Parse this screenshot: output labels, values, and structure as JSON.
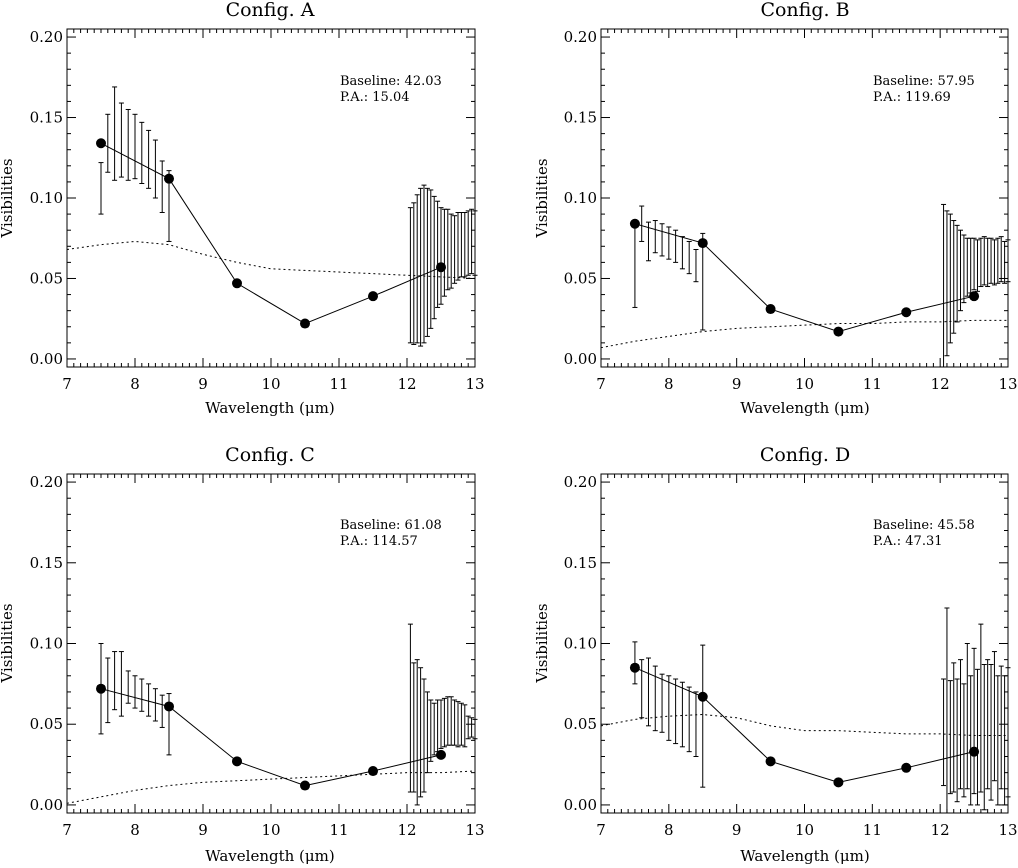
{
  "chart_data": [
    {
      "type": "scatter",
      "title": "Config. A",
      "xlabel": "Wavelength (μm)",
      "ylabel": "Visibilities",
      "xlim": [
        7,
        13
      ],
      "ylim": [
        -0.005,
        0.205
      ],
      "x_ticks": [
        "7",
        "8",
        "9",
        "10",
        "11",
        "12",
        "13"
      ],
      "y_ticks": [
        "0.00",
        "0.05",
        "0.10",
        "0.15",
        "0.20"
      ],
      "annotation": {
        "baseline": "Baseline: 42.03",
        "pa": "P.A.: 15.04"
      },
      "measured": {
        "x": [
          7.5,
          7.6,
          7.7,
          7.8,
          7.9,
          8.0,
          8.1,
          8.2,
          8.3,
          8.4,
          8.5,
          12.05,
          12.1,
          12.15,
          12.2,
          12.25,
          12.3,
          12.35,
          12.4,
          12.45,
          12.5,
          12.55,
          12.6,
          12.65,
          12.7,
          12.75,
          12.8,
          12.85,
          12.9,
          12.95,
          13.0
        ],
        "y": [
          0.106,
          0.134,
          0.14,
          0.136,
          0.133,
          0.132,
          0.128,
          0.124,
          0.118,
          0.107,
          0.095,
          0.052,
          0.053,
          0.056,
          0.057,
          0.059,
          0.06,
          0.062,
          0.063,
          0.065,
          0.064,
          0.066,
          0.068,
          0.067,
          0.068,
          0.07,
          0.071,
          0.071,
          0.072,
          0.073,
          0.072
        ],
        "err": [
          0.016,
          0.018,
          0.029,
          0.023,
          0.022,
          0.02,
          0.019,
          0.018,
          0.018,
          0.016,
          0.022,
          0.042,
          0.044,
          0.046,
          0.049,
          0.049,
          0.046,
          0.043,
          0.038,
          0.033,
          0.03,
          0.027,
          0.025,
          0.023,
          0.021,
          0.021,
          0.02,
          0.02,
          0.02,
          0.02,
          0.02
        ]
      },
      "binned": {
        "x": [
          7.5,
          8.5,
          9.5,
          10.5,
          11.5,
          12.5
        ],
        "y": [
          0.134,
          0.112,
          0.047,
          0.022,
          0.039,
          0.057
        ]
      },
      "model": {
        "x": [
          7.0,
          7.5,
          8.0,
          8.5,
          9.0,
          9.5,
          10.0,
          10.5,
          11.0,
          11.5,
          12.0,
          12.5,
          13.0
        ],
        "y": [
          0.068,
          0.071,
          0.073,
          0.071,
          0.065,
          0.06,
          0.056,
          0.055,
          0.054,
          0.053,
          0.052,
          0.051,
          0.05
        ]
      }
    },
    {
      "type": "scatter",
      "title": "Config. B",
      "xlabel": "Wavelength (μm)",
      "ylabel": "Visibilities",
      "xlim": [
        7,
        13
      ],
      "ylim": [
        -0.005,
        0.205
      ],
      "x_ticks": [
        "7",
        "8",
        "9",
        "10",
        "11",
        "12",
        "13"
      ],
      "y_ticks": [
        "0.00",
        "0.05",
        "0.10",
        "0.15",
        "0.20"
      ],
      "annotation": {
        "baseline": "Baseline: 57.95",
        "pa": "P.A.: 119.69"
      },
      "measured": {
        "x": [
          7.5,
          7.6,
          7.7,
          7.8,
          7.9,
          8.0,
          8.1,
          8.2,
          8.3,
          8.4,
          8.5,
          12.05,
          12.1,
          12.15,
          12.2,
          12.25,
          12.3,
          12.35,
          12.4,
          12.45,
          12.5,
          12.55,
          12.6,
          12.65,
          12.7,
          12.75,
          12.8,
          12.85,
          12.9,
          12.95,
          13.0
        ],
        "y": [
          0.057,
          0.084,
          0.073,
          0.076,
          0.074,
          0.072,
          0.07,
          0.066,
          0.063,
          0.058,
          0.048,
          0.042,
          0.047,
          0.05,
          0.051,
          0.053,
          0.055,
          0.056,
          0.057,
          0.058,
          0.059,
          0.058,
          0.06,
          0.061,
          0.06,
          0.061,
          0.06,
          0.061,
          0.062,
          0.06,
          0.061
        ],
        "err": [
          0.025,
          0.011,
          0.012,
          0.01,
          0.01,
          0.01,
          0.01,
          0.01,
          0.01,
          0.01,
          0.03,
          0.054,
          0.045,
          0.04,
          0.035,
          0.03,
          0.025,
          0.021,
          0.018,
          0.017,
          0.016,
          0.016,
          0.015,
          0.015,
          0.015,
          0.014,
          0.014,
          0.014,
          0.014,
          0.013,
          0.013
        ]
      },
      "binned": {
        "x": [
          7.5,
          8.5,
          9.5,
          10.5,
          11.5,
          12.5
        ],
        "y": [
          0.084,
          0.072,
          0.031,
          0.017,
          0.029,
          0.039
        ]
      },
      "model": {
        "x": [
          7.0,
          7.5,
          8.0,
          8.5,
          9.0,
          9.5,
          10.0,
          10.5,
          11.0,
          11.5,
          12.0,
          12.5,
          13.0
        ],
        "y": [
          0.007,
          0.011,
          0.014,
          0.017,
          0.019,
          0.02,
          0.021,
          0.022,
          0.022,
          0.023,
          0.023,
          0.024,
          0.024
        ]
      }
    },
    {
      "type": "scatter",
      "title": "Config. C",
      "xlabel": "Wavelength (μm)",
      "ylabel": "Visibilities",
      "xlim": [
        7,
        13
      ],
      "ylim": [
        -0.005,
        0.205
      ],
      "x_ticks": [
        "7",
        "8",
        "9",
        "10",
        "11",
        "12",
        "13"
      ],
      "y_ticks": [
        "0.00",
        "0.05",
        "0.10",
        "0.15",
        "0.20"
      ],
      "annotation": {
        "baseline": "Baseline: 61.08",
        "pa": "P.A.: 114.57"
      },
      "measured": {
        "x": [
          7.5,
          7.6,
          7.7,
          7.8,
          7.9,
          8.0,
          8.1,
          8.2,
          8.3,
          8.4,
          8.5,
          12.05,
          12.1,
          12.15,
          12.2,
          12.25,
          12.3,
          12.35,
          12.4,
          12.45,
          12.5,
          12.55,
          12.6,
          12.65,
          12.7,
          12.75,
          12.8,
          12.85,
          12.9,
          12.95,
          13.0
        ],
        "y": [
          0.072,
          0.071,
          0.077,
          0.075,
          0.073,
          0.07,
          0.068,
          0.065,
          0.062,
          0.058,
          0.05,
          0.06,
          0.048,
          0.045,
          0.045,
          0.043,
          0.045,
          0.046,
          0.047,
          0.049,
          0.05,
          0.051,
          0.052,
          0.052,
          0.051,
          0.05,
          0.05,
          0.049,
          0.048,
          0.048,
          0.047
        ],
        "err": [
          0.028,
          0.02,
          0.018,
          0.02,
          0.01,
          0.01,
          0.01,
          0.01,
          0.01,
          0.01,
          0.019,
          0.052,
          0.04,
          0.045,
          0.04,
          0.035,
          0.025,
          0.019,
          0.016,
          0.016,
          0.015,
          0.015,
          0.015,
          0.015,
          0.014,
          0.014,
          0.013,
          0.013,
          0.007,
          0.006,
          0.006
        ]
      },
      "binned": {
        "x": [
          7.5,
          8.5,
          9.5,
          10.5,
          11.5,
          12.5
        ],
        "y": [
          0.072,
          0.061,
          0.027,
          0.012,
          0.021,
          0.031
        ]
      },
      "model": {
        "x": [
          7.0,
          7.5,
          8.0,
          8.5,
          9.0,
          9.5,
          10.0,
          10.5,
          11.0,
          11.5,
          12.0,
          12.5,
          13.0
        ],
        "y": [
          0.001,
          0.005,
          0.009,
          0.012,
          0.014,
          0.015,
          0.016,
          0.017,
          0.018,
          0.019,
          0.02,
          0.02,
          0.021
        ]
      }
    },
    {
      "type": "scatter",
      "title": "Config. D",
      "xlabel": "Wavelength (μm)",
      "ylabel": "Visibilities",
      "xlim": [
        7,
        13
      ],
      "ylim": [
        -0.005,
        0.205
      ],
      "x_ticks": [
        "7",
        "8",
        "9",
        "10",
        "11",
        "12",
        "13"
      ],
      "y_ticks": [
        "0.00",
        "0.05",
        "0.10",
        "0.15",
        "0.20"
      ],
      "annotation": {
        "baseline": "Baseline: 45.58",
        "pa": "P.A.: 47.31"
      },
      "measured": {
        "x": [
          7.5,
          7.6,
          7.7,
          7.8,
          7.9,
          8.0,
          8.1,
          8.2,
          8.3,
          8.4,
          8.5,
          12.05,
          12.1,
          12.15,
          12.2,
          12.25,
          12.3,
          12.35,
          12.4,
          12.45,
          12.5,
          12.55,
          12.6,
          12.65,
          12.7,
          12.75,
          12.8,
          12.85,
          12.9,
          12.95,
          13.0
        ],
        "y": [
          0.088,
          0.072,
          0.07,
          0.066,
          0.063,
          0.06,
          0.058,
          0.056,
          0.053,
          0.05,
          0.055,
          0.045,
          0.05,
          0.042,
          0.048,
          0.04,
          0.05,
          0.04,
          0.055,
          0.04,
          0.052,
          0.042,
          0.06,
          0.042,
          0.05,
          0.045,
          0.055,
          0.04,
          0.048,
          0.04,
          0.045
        ],
        "err": [
          0.013,
          0.018,
          0.021,
          0.02,
          0.018,
          0.02,
          0.02,
          0.02,
          0.02,
          0.02,
          0.044,
          0.033,
          0.072,
          0.035,
          0.04,
          0.038,
          0.04,
          0.035,
          0.045,
          0.04,
          0.045,
          0.042,
          0.052,
          0.045,
          0.04,
          0.042,
          0.04,
          0.04,
          0.038,
          0.04,
          0.04
        ]
      },
      "binned": {
        "x": [
          7.5,
          8.5,
          9.5,
          10.5,
          11.5,
          12.5
        ],
        "y": [
          0.085,
          0.067,
          0.027,
          0.014,
          0.023,
          0.033
        ]
      },
      "model": {
        "x": [
          7.0,
          7.5,
          8.0,
          8.5,
          9.0,
          9.5,
          10.0,
          10.5,
          11.0,
          11.5,
          12.0,
          12.5,
          13.0
        ],
        "y": [
          0.049,
          0.053,
          0.055,
          0.056,
          0.054,
          0.049,
          0.046,
          0.046,
          0.045,
          0.044,
          0.044,
          0.043,
          0.043
        ]
      }
    }
  ]
}
